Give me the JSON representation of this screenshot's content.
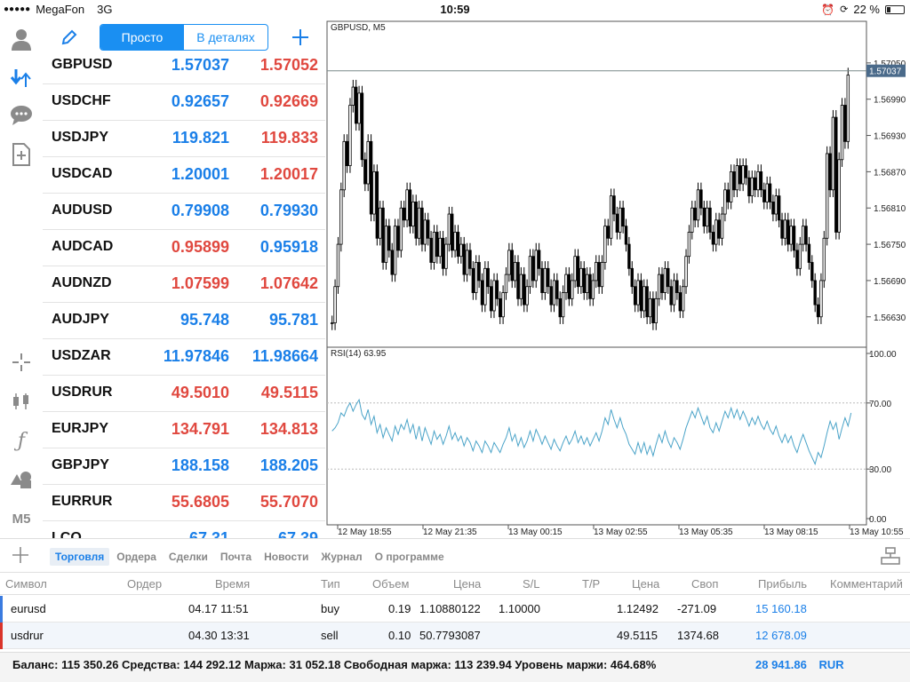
{
  "status_bar": {
    "carrier": "MegaFon",
    "network": "3G",
    "time": "10:59",
    "battery_pct": "22 %",
    "battery_level": 0.22
  },
  "left_toolbar": {
    "items": [
      {
        "icon": "account-icon"
      },
      {
        "icon": "trade-arrows-icon"
      },
      {
        "icon": "chat-icon"
      },
      {
        "icon": "new-document-icon"
      },
      {
        "icon": "crosshair-icon"
      },
      {
        "icon": "candlestick-icon"
      },
      {
        "icon": "function-icon",
        "label": "ƒ"
      },
      {
        "icon": "objects-icon"
      },
      {
        "icon": "timeframe-icon",
        "label": "M5"
      }
    ]
  },
  "quotes_header": {
    "mode_simple": "Просто",
    "mode_detailed": "В деталях"
  },
  "quotes": [
    {
      "symbol": "GBPUSD",
      "bid": "1.57037",
      "ask": "1.57052",
      "bid_dir": "up",
      "ask_dir": "down"
    },
    {
      "symbol": "USDCHF",
      "bid": "0.92657",
      "ask": "0.92669",
      "bid_dir": "up",
      "ask_dir": "down"
    },
    {
      "symbol": "USDJPY",
      "bid": "119.821",
      "ask": "119.833",
      "bid_dir": "up",
      "ask_dir": "down"
    },
    {
      "symbol": "USDCAD",
      "bid": "1.20001",
      "ask": "1.20017",
      "bid_dir": "up",
      "ask_dir": "down"
    },
    {
      "symbol": "AUDUSD",
      "bid": "0.79908",
      "ask": "0.79930",
      "bid_dir": "up",
      "ask_dir": "up"
    },
    {
      "symbol": "AUDCAD",
      "bid": "0.95899",
      "ask": "0.95918",
      "bid_dir": "down",
      "ask_dir": "up"
    },
    {
      "symbol": "AUDNZD",
      "bid": "1.07599",
      "ask": "1.07642",
      "bid_dir": "down",
      "ask_dir": "down"
    },
    {
      "symbol": "AUDJPY",
      "bid": "95.748",
      "ask": "95.781",
      "bid_dir": "up",
      "ask_dir": "up"
    },
    {
      "symbol": "USDZAR",
      "bid": "11.97846",
      "ask": "11.98664",
      "bid_dir": "up",
      "ask_dir": "up"
    },
    {
      "symbol": "USDRUR",
      "bid": "49.5010",
      "ask": "49.5115",
      "bid_dir": "down",
      "ask_dir": "down"
    },
    {
      "symbol": "EURJPY",
      "bid": "134.791",
      "ask": "134.813",
      "bid_dir": "down",
      "ask_dir": "down"
    },
    {
      "symbol": "GBPJPY",
      "bid": "188.158",
      "ask": "188.205",
      "bid_dir": "up",
      "ask_dir": "up"
    },
    {
      "symbol": "EURRUR",
      "bid": "55.6805",
      "ask": "55.7070",
      "bid_dir": "down",
      "ask_dir": "down"
    },
    {
      "symbol": "LCO",
      "bid": "67.31",
      "ask": "67.39",
      "bid_dir": "up",
      "ask_dir": "up"
    }
  ],
  "chart": {
    "title": "GBPUSD, M5",
    "current_price": "1.57037",
    "indicator_label": "RSI(14) 63.95"
  },
  "chart_data": {
    "type": "candlestick",
    "symbol": "GBPUSD",
    "timeframe": "M5",
    "price_ticks": [
      "1.57050",
      "1.56990",
      "1.56930",
      "1.56870",
      "1.56810",
      "1.56750",
      "1.56690",
      "1.56630"
    ],
    "price_range": [
      1.5659,
      1.5711
    ],
    "current_price": 1.57037,
    "x_ticks": [
      "12 May 18:55",
      "12 May 21:35",
      "13 May 00:15",
      "13 May 02:55",
      "13 May 05:35",
      "13 May 08:15",
      "13 May 10:55"
    ],
    "close": [
      1.5662,
      1.5668,
      1.5675,
      1.5684,
      1.5692,
      1.5688,
      1.5698,
      1.5701,
      1.5695,
      1.57,
      1.5689,
      1.5685,
      1.5692,
      1.568,
      1.5687,
      1.5676,
      1.5681,
      1.5672,
      1.5678,
      1.5674,
      1.567,
      1.5678,
      1.5674,
      1.5681,
      1.5679,
      1.5684,
      1.5678,
      1.5682,
      1.5676,
      1.5681,
      1.5675,
      1.5679,
      1.5676,
      1.5672,
      1.5677,
      1.5673,
      1.5676,
      1.5671,
      1.5675,
      1.568,
      1.5674,
      1.5677,
      1.5673,
      1.5675,
      1.567,
      1.5674,
      1.5671,
      1.5667,
      1.5672,
      1.5669,
      1.5665,
      1.5671,
      1.5668,
      1.5664,
      1.5669,
      1.5666,
      1.5663,
      1.5667,
      1.567,
      1.5674,
      1.5669,
      1.5672,
      1.5666,
      1.567,
      1.5665,
      1.5668,
      1.5673,
      1.5669,
      1.5674,
      1.5671,
      1.5667,
      1.5671,
      1.5668,
      1.5665,
      1.5669,
      1.5666,
      1.5663,
      1.5667,
      1.567,
      1.5666,
      1.5669,
      1.5673,
      1.5668,
      1.5671,
      1.5667,
      1.567,
      1.5666,
      1.5669,
      1.5672,
      1.5668,
      1.5672,
      1.5678,
      1.5676,
      1.5683,
      1.568,
      1.5677,
      1.5681,
      1.5678,
      1.5675,
      1.5671,
      1.5668,
      1.5665,
      1.5669,
      1.5664,
      1.5668,
      1.5663,
      1.5666,
      1.5662,
      1.5666,
      1.567,
      1.5667,
      1.5671,
      1.5668,
      1.5665,
      1.5669,
      1.5667,
      1.5664,
      1.5668,
      1.5673,
      1.5677,
      1.5681,
      1.5679,
      1.5684,
      1.5681,
      1.5678,
      1.5681,
      1.5677,
      1.5675,
      1.5679,
      1.5676,
      1.568,
      1.5684,
      1.5682,
      1.5687,
      1.5684,
      1.5688,
      1.5685,
      1.5688,
      1.5686,
      1.5683,
      1.5686,
      1.5684,
      1.5687,
      1.5684,
      1.5682,
      1.5685,
      1.5682,
      1.568,
      1.5683,
      1.5679,
      1.5676,
      1.5679,
      1.5675,
      1.5678,
      1.5674,
      1.5671,
      1.5675,
      1.5678,
      1.5675,
      1.5672,
      1.5669,
      1.5665,
      1.5663,
      1.5669,
      1.5676,
      1.569,
      1.5684,
      1.5696,
      1.5677,
      1.5689,
      1.5698,
      1.5692,
      1.5703
    ],
    "rsi_ticks": [
      "100.00",
      "70.00",
      "30.00",
      "0.00"
    ],
    "rsi_range": [
      0,
      100
    ],
    "rsi": [
      53,
      55,
      58,
      64,
      62,
      67,
      70,
      65,
      69,
      72,
      63,
      60,
      66,
      57,
      62,
      52,
      57,
      49,
      55,
      51,
      47,
      56,
      51,
      57,
      54,
      60,
      52,
      57,
      48,
      56,
      47,
      55,
      50,
      45,
      53,
      48,
      51,
      45,
      50,
      56,
      48,
      52,
      47,
      50,
      44,
      49,
      46,
      41,
      47,
      44,
      40,
      47,
      44,
      40,
      46,
      43,
      40,
      45,
      49,
      55,
      47,
      51,
      44,
      49,
      43,
      47,
      53,
      47,
      54,
      50,
      45,
      50,
      46,
      42,
      48,
      44,
      41,
      46,
      50,
      45,
      48,
      53,
      46,
      50,
      45,
      49,
      44,
      48,
      52,
      47,
      53,
      61,
      57,
      66,
      60,
      55,
      61,
      55,
      51,
      45,
      42,
      39,
      46,
      40,
      46,
      39,
      44,
      38,
      45,
      51,
      46,
      53,
      47,
      43,
      49,
      46,
      42,
      48,
      55,
      60,
      65,
      61,
      67,
      62,
      57,
      62,
      55,
      52,
      58,
      53,
      59,
      65,
      61,
      67,
      61,
      66,
      60,
      65,
      61,
      56,
      61,
      57,
      62,
      57,
      54,
      59,
      54,
      51,
      56,
      50,
      46,
      51,
      46,
      50,
      44,
      40,
      46,
      51,
      46,
      41,
      37,
      33,
      40,
      37,
      44,
      52,
      59,
      54,
      58,
      48,
      55,
      61,
      56,
      64
    ]
  },
  "bottom_tabs": {
    "items": [
      {
        "label": "Торговля",
        "active": true
      },
      {
        "label": "Ордера",
        "active": false
      },
      {
        "label": "Сделки",
        "active": false
      },
      {
        "label": "Почта",
        "active": false
      },
      {
        "label": "Новости",
        "active": false
      },
      {
        "label": "Журнал",
        "active": false
      },
      {
        "label": "О программе",
        "active": false
      }
    ]
  },
  "positions_table": {
    "headers": {
      "symbol": "Символ",
      "order": "Ордер",
      "time": "Время",
      "type": "Тип",
      "volume": "Объем",
      "price": "Цена",
      "sl": "S/L",
      "tp": "T/P",
      "cur_price": "Цена",
      "swap": "Своп",
      "profit": "Прибыль",
      "comment": "Комментарий"
    },
    "rows": [
      {
        "symbol": "eurusd",
        "time": "04.17 11:51",
        "type": "buy",
        "volume": "0.19",
        "price": "1.10880122",
        "sl": "1.10000",
        "cur_price": "1.12492",
        "swap": "-271.09",
        "profit": "15 160.18",
        "flag_color": "#3a7be0"
      },
      {
        "symbol": "usdrur",
        "time": "04.30 13:31",
        "type": "sell",
        "volume": "0.10",
        "price": "50.7793087",
        "sl": "",
        "cur_price": "49.5115",
        "swap": "1374.68",
        "profit": "12 678.09",
        "flag_color": "#d9342b"
      }
    ],
    "summary": "Баланс: 115 350.26 Средства: 144 292.12 Маржа: 31 052.18 Свободная маржа: 113 239.94 Уровень маржи: 464.68%",
    "total_profit": "28 941.86",
    "currency": "RUR"
  },
  "colors": {
    "accent": "#1a8ff2",
    "up": "#1a7fe8",
    "down": "#e0483f",
    "rsi_line": "#4aa3c8"
  }
}
